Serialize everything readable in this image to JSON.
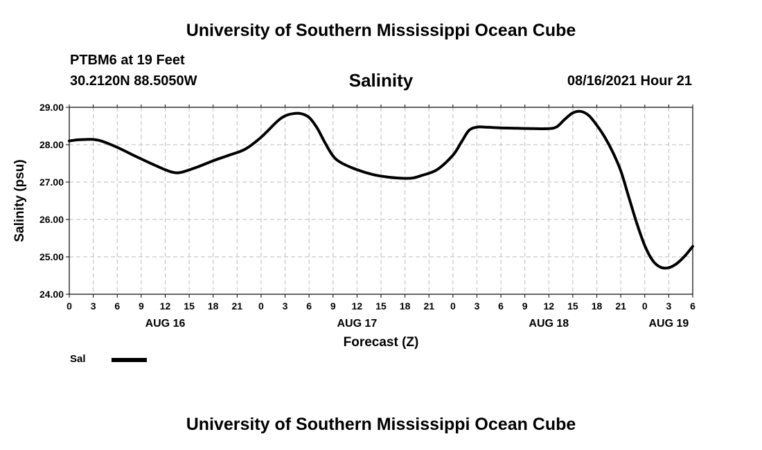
{
  "header": {
    "title_top": "University of Southern Mississippi Ocean Cube",
    "title_bottom": "University of Southern Mississippi Ocean Cube",
    "station": "PTBM6 at 19 Feet",
    "coords": "30.2120N  88.5050W",
    "chart_title": "Salinity",
    "datetime": "08/16/2021 Hour 21"
  },
  "legend": {
    "label": "Sal"
  },
  "chart_data": {
    "type": "line",
    "title": "Salinity",
    "xlabel": "Forecast (Z)",
    "ylabel": "Salinity (psu)",
    "ylim": [
      24.0,
      29.0
    ],
    "xlim": [
      0,
      78
    ],
    "grid": true,
    "y_ticks": [
      "24.00",
      "25.00",
      "26.00",
      "27.00",
      "28.00",
      "29.00"
    ],
    "x_ticks": [
      {
        "h": 0,
        "label": "0"
      },
      {
        "h": 3,
        "label": "3"
      },
      {
        "h": 6,
        "label": "6"
      },
      {
        "h": 9,
        "label": "9"
      },
      {
        "h": 12,
        "label": "12"
      },
      {
        "h": 15,
        "label": "15"
      },
      {
        "h": 18,
        "label": "18"
      },
      {
        "h": 21,
        "label": "21"
      },
      {
        "h": 24,
        "label": "0"
      },
      {
        "h": 27,
        "label": "3"
      },
      {
        "h": 30,
        "label": "6"
      },
      {
        "h": 33,
        "label": "9"
      },
      {
        "h": 36,
        "label": "12"
      },
      {
        "h": 39,
        "label": "15"
      },
      {
        "h": 42,
        "label": "18"
      },
      {
        "h": 45,
        "label": "21"
      },
      {
        "h": 48,
        "label": "0"
      },
      {
        "h": 51,
        "label": "3"
      },
      {
        "h": 54,
        "label": "6"
      },
      {
        "h": 57,
        "label": "9"
      },
      {
        "h": 60,
        "label": "12"
      },
      {
        "h": 63,
        "label": "15"
      },
      {
        "h": 66,
        "label": "18"
      },
      {
        "h": 69,
        "label": "21"
      },
      {
        "h": 72,
        "label": "0"
      },
      {
        "h": 75,
        "label": "3"
      },
      {
        "h": 78,
        "label": "6"
      }
    ],
    "date_labels": [
      {
        "h": 12,
        "label": "AUG 16"
      },
      {
        "h": 36,
        "label": "AUG 17"
      },
      {
        "h": 60,
        "label": "AUG 18"
      },
      {
        "h": 75,
        "label": "AUG 19"
      }
    ],
    "series": [
      {
        "name": "Sal",
        "x": [
          0,
          1,
          2,
          3,
          4,
          6,
          8,
          10,
          12,
          13,
          14,
          16,
          18,
          20,
          22,
          24,
          26,
          27,
          28,
          29,
          30,
          31,
          32,
          33,
          34,
          36,
          38,
          40,
          42,
          43,
          44,
          46,
          48,
          49,
          50,
          51,
          52,
          54,
          56,
          58,
          60,
          61,
          62,
          63,
          64,
          65,
          66,
          67,
          68,
          69,
          70,
          71,
          72,
          73,
          74,
          75,
          76,
          77,
          78
        ],
        "values": [
          28.1,
          28.13,
          28.14,
          28.14,
          28.1,
          27.93,
          27.72,
          27.52,
          27.33,
          27.26,
          27.26,
          27.4,
          27.57,
          27.72,
          27.88,
          28.2,
          28.62,
          28.77,
          28.83,
          28.83,
          28.73,
          28.45,
          28.05,
          27.7,
          27.52,
          27.33,
          27.2,
          27.13,
          27.1,
          27.11,
          27.17,
          27.33,
          27.72,
          28.05,
          28.38,
          28.47,
          28.47,
          28.45,
          28.44,
          28.43,
          28.43,
          28.48,
          28.68,
          28.85,
          28.89,
          28.78,
          28.52,
          28.2,
          27.8,
          27.3,
          26.6,
          25.9,
          25.3,
          24.9,
          24.72,
          24.71,
          24.82,
          25.02,
          25.28
        ]
      }
    ]
  }
}
